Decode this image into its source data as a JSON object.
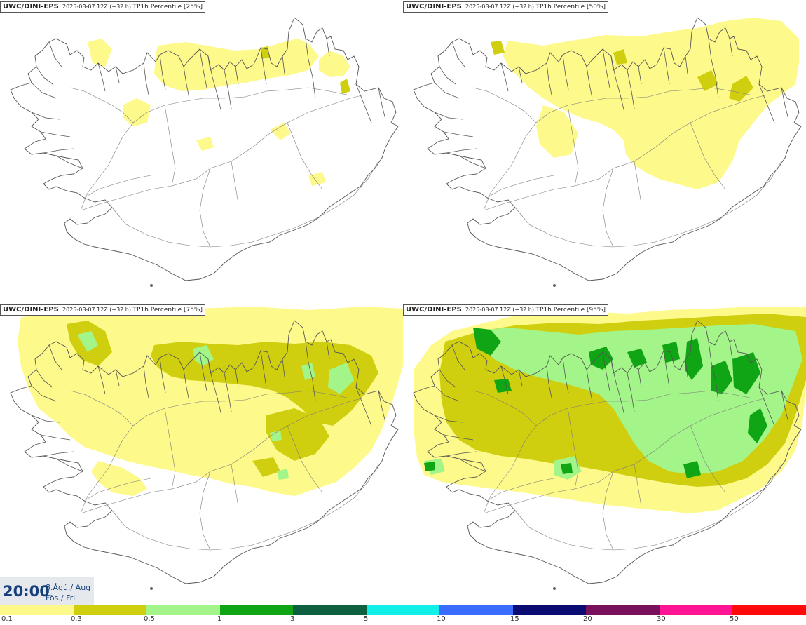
{
  "panels": [
    {
      "model": "UWC/DINI-EPS",
      "run": ": 2025-08-07 12Z (+32 h) ",
      "field": "TP1h Percentile [25%]",
      "level": 0
    },
    {
      "model": "UWC/DINI-EPS",
      "run": ": 2025-08-07 12Z (+32 h) ",
      "field": "TP1h Percentile [50%]",
      "level": 1
    },
    {
      "model": "UWC/DINI-EPS",
      "run": ": 2025-08-07 12Z (+32 h) ",
      "field": "TP1h Percentile [75%]",
      "level": 2
    },
    {
      "model": "UWC/DINI-EPS",
      "run": ": 2025-08-07 12Z (+32 h) ",
      "field": "TP1h Percentile [95%]",
      "level": 3
    }
  ],
  "valid_time": {
    "time": "20:00",
    "date_line1": "8.Ágú./ Aug",
    "date_line2": "Fös./ Fri"
  },
  "legend": {
    "colors": [
      "#fdf98b",
      "#cfcf10",
      "#a3f58a",
      "#10a514",
      "#0f6040",
      "#10f0e8",
      "#3a6cff",
      "#0b0b74",
      "#78105c",
      "#ff1493",
      "#ff0a0a"
    ],
    "ticks": [
      "0.1",
      "0.3",
      "0.5",
      "1",
      "3",
      "5",
      "10",
      "15",
      "20",
      "30",
      "50"
    ]
  },
  "palette": {
    "light": "#fdf98b",
    "olive": "#cfcf10",
    "lightgreen": "#a3f58a",
    "green": "#10a514"
  }
}
